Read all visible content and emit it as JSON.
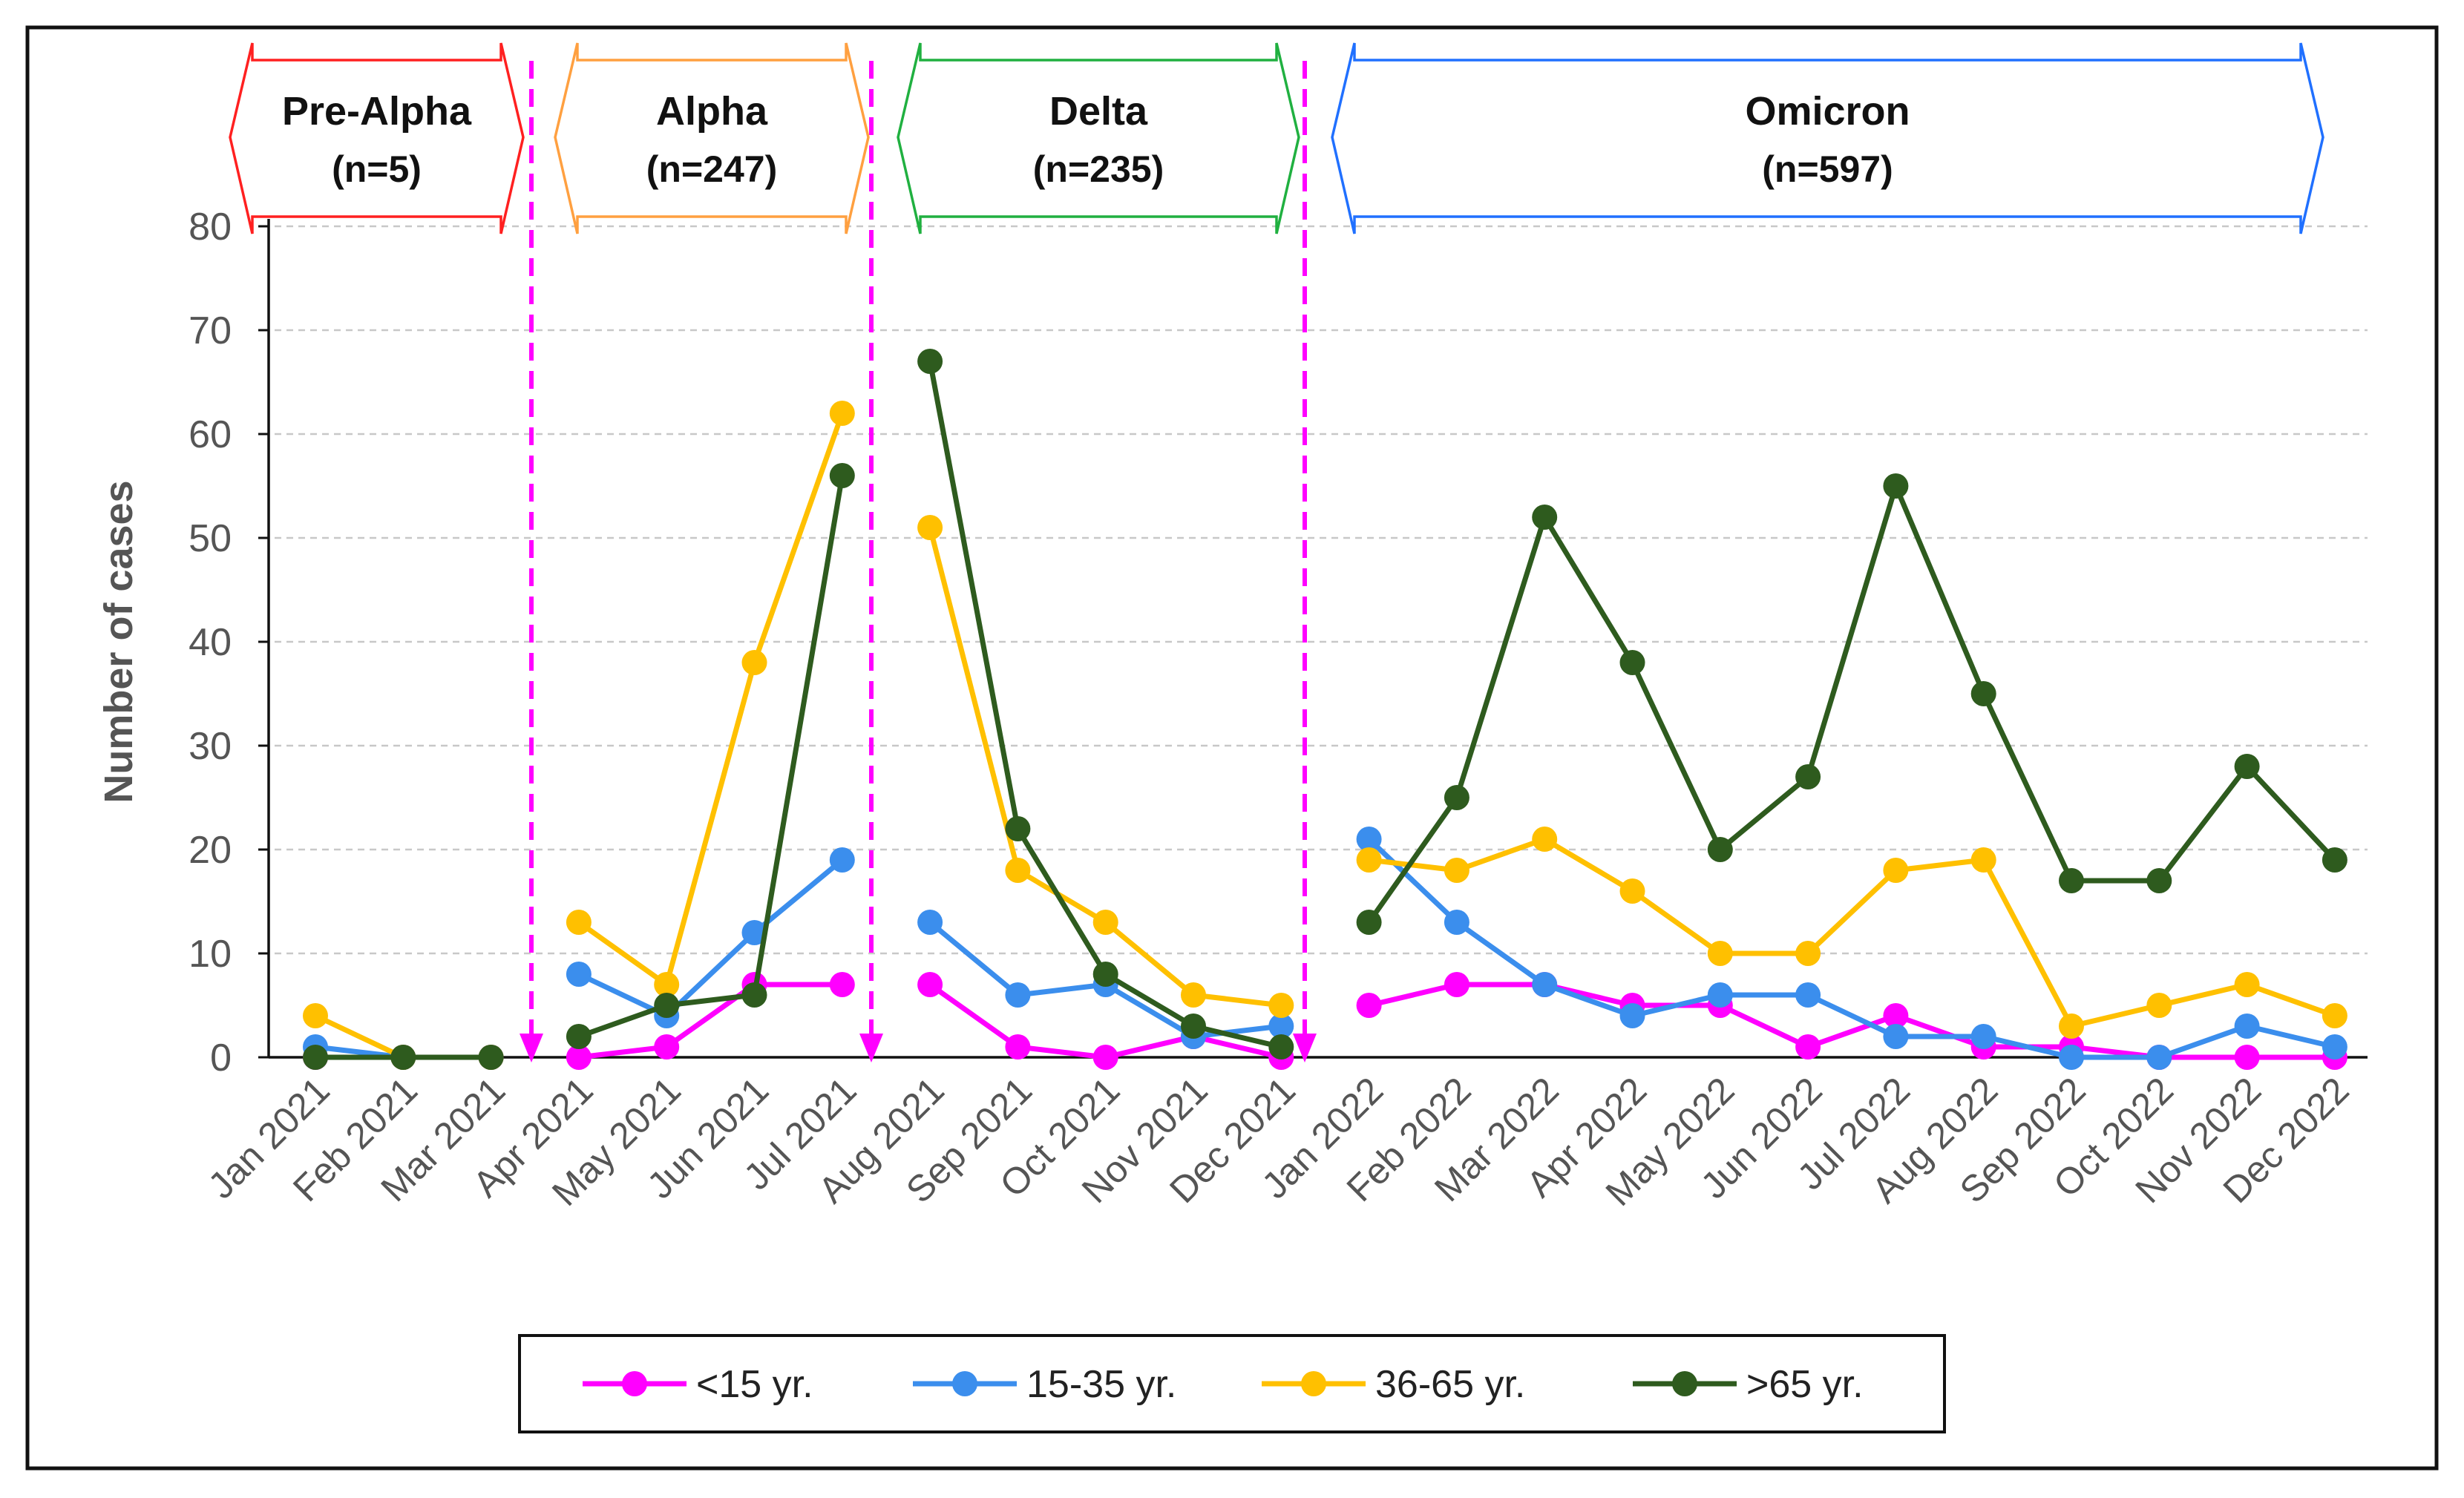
{
  "chart_data": {
    "type": "line",
    "ylabel": "Number of cases",
    "ylim": [
      0,
      80
    ],
    "yticks": [
      0,
      10,
      20,
      30,
      40,
      50,
      60,
      70,
      80
    ],
    "grid": true,
    "categories": [
      "Jan 2021",
      "Feb 2021",
      "Mar 2021",
      "Apr 2021",
      "May 2021",
      "Jun 2021",
      "Jul 2021",
      "Aug 2021",
      "Sep 2021",
      "Oct 2021",
      "Nov 2021",
      "Dec 2021",
      "Jan 2022",
      "Feb 2022",
      "Mar 2022",
      "Apr 2022",
      "May 2022",
      "Jun 2022",
      "Jul 2022",
      "Aug 2022",
      "Sep 2022",
      "Oct 2022",
      "Nov 2022",
      "Dec 2022"
    ],
    "segments": [
      [
        0,
        2
      ],
      [
        3,
        6
      ],
      [
        7,
        11
      ],
      [
        12,
        23
      ]
    ],
    "variant_periods": [
      {
        "name": "Pre-Alpha",
        "count": "(n=5)",
        "color": "#ff2020"
      },
      {
        "name": "Alpha",
        "count": "(n=247)",
        "color": "#ffa040"
      },
      {
        "name": "Delta",
        "count": "(n=235)",
        "color": "#20b040"
      },
      {
        "name": "Omicron",
        "count": "(n=597)",
        "color": "#2070ff"
      }
    ],
    "divider_color": "#ff00ff",
    "series": [
      {
        "name": "<15 yr.",
        "color": "#ff00ff",
        "values": [
          0,
          0,
          0,
          0,
          1,
          7,
          7,
          7,
          1,
          0,
          2,
          0,
          5,
          7,
          7,
          5,
          5,
          1,
          4,
          1,
          1,
          0,
          0,
          0
        ]
      },
      {
        "name": "15-35 yr.",
        "color": "#3b8eed",
        "values": [
          1,
          0,
          0,
          8,
          4,
          12,
          19,
          13,
          6,
          7,
          2,
          3,
          21,
          13,
          7,
          4,
          6,
          6,
          2,
          2,
          0,
          0,
          3,
          1
        ]
      },
      {
        "name": "36-65 yr.",
        "color": "#ffc000",
        "values": [
          4,
          0,
          0,
          13,
          7,
          38,
          62,
          51,
          18,
          13,
          6,
          5,
          19,
          18,
          21,
          16,
          10,
          10,
          18,
          19,
          3,
          5,
          7,
          4
        ]
      },
      {
        "name": ">65 yr.",
        "color": "#2e5b1e",
        "values": [
          0,
          0,
          0,
          2,
          5,
          6,
          56,
          67,
          22,
          8,
          3,
          1,
          13,
          25,
          52,
          38,
          20,
          27,
          55,
          35,
          17,
          17,
          28,
          19
        ]
      }
    ]
  }
}
